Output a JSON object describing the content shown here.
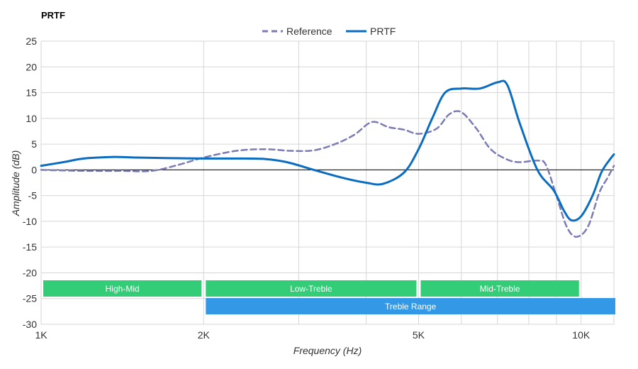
{
  "chart_data": {
    "type": "line",
    "title": "PRTF",
    "xlabel": "Frequency (Hz)",
    "ylabel": "Amplitude (dB)",
    "x_scale": "log",
    "xlim": [
      1000,
      11500
    ],
    "ylim": [
      -30,
      25
    ],
    "x_ticks": [
      {
        "value": 1000,
        "label": "1K"
      },
      {
        "value": 2000,
        "label": "2K"
      },
      {
        "value": 5000,
        "label": "5K"
      },
      {
        "value": 10000,
        "label": "10K"
      }
    ],
    "x_minor_gridlines": [
      3000,
      4000,
      6000,
      7000,
      8000,
      9000
    ],
    "y_ticks": [
      25,
      20,
      15,
      10,
      5,
      0,
      -5,
      -10,
      -15,
      -20,
      -25,
      -30
    ],
    "grid": true,
    "legend_position": "top-center",
    "series": [
      {
        "name": "Reference",
        "color": "#7b7bb5",
        "style": "dashed",
        "points": [
          [
            1000,
            0.0
          ],
          [
            1200,
            -0.2
          ],
          [
            1400,
            -0.2
          ],
          [
            1600,
            -0.2
          ],
          [
            1800,
            1.0
          ],
          [
            2000,
            2.4
          ],
          [
            2300,
            3.7
          ],
          [
            2600,
            4.0
          ],
          [
            2900,
            3.7
          ],
          [
            3200,
            3.8
          ],
          [
            3500,
            5.0
          ],
          [
            3800,
            6.8
          ],
          [
            4100,
            9.3
          ],
          [
            4400,
            8.3
          ],
          [
            4700,
            7.8
          ],
          [
            5000,
            7.0
          ],
          [
            5400,
            8.0
          ],
          [
            5700,
            10.8
          ],
          [
            6000,
            11.2
          ],
          [
            6400,
            8.0
          ],
          [
            6800,
            4.0
          ],
          [
            7300,
            2.0
          ],
          [
            7700,
            1.5
          ],
          [
            8300,
            1.8
          ],
          [
            8600,
            1.0
          ],
          [
            9000,
            -5.0
          ],
          [
            9400,
            -11.0
          ],
          [
            9800,
            -13.0
          ],
          [
            10300,
            -11.0
          ],
          [
            10800,
            -4.5
          ],
          [
            11200,
            -1.5
          ],
          [
            11500,
            0.8
          ]
        ]
      },
      {
        "name": "PRTF",
        "color": "#0a6dc0",
        "style": "solid",
        "points": [
          [
            1000,
            0.8
          ],
          [
            1100,
            1.5
          ],
          [
            1200,
            2.2
          ],
          [
            1350,
            2.5
          ],
          [
            1500,
            2.4
          ],
          [
            1700,
            2.3
          ],
          [
            2000,
            2.2
          ],
          [
            2300,
            2.2
          ],
          [
            2600,
            2.1
          ],
          [
            2850,
            1.5
          ],
          [
            3200,
            0.0
          ],
          [
            3600,
            -1.5
          ],
          [
            4000,
            -2.5
          ],
          [
            4300,
            -2.7
          ],
          [
            4700,
            -0.5
          ],
          [
            5000,
            4.0
          ],
          [
            5300,
            10.0
          ],
          [
            5600,
            15.0
          ],
          [
            6000,
            15.8
          ],
          [
            6500,
            15.8
          ],
          [
            7000,
            17.0
          ],
          [
            7300,
            16.5
          ],
          [
            7700,
            9.0
          ],
          [
            8300,
            0.0
          ],
          [
            8900,
            -4.0
          ],
          [
            9300,
            -8.0
          ],
          [
            9600,
            -9.8
          ],
          [
            10000,
            -9.0
          ],
          [
            10500,
            -5.0
          ],
          [
            10900,
            -0.5
          ],
          [
            11300,
            2.0
          ],
          [
            11500,
            3.0
          ]
        ]
      }
    ],
    "bands": [
      {
        "label": "High-Mid",
        "from": 1000,
        "to": 2000,
        "row": 0,
        "color": "#33cc77"
      },
      {
        "label": "Low-Treble",
        "from": 2000,
        "to": 5000,
        "row": 0,
        "color": "#33cc77"
      },
      {
        "label": "Mid-Treble",
        "from": 5000,
        "to": 10000,
        "row": 0,
        "color": "#33cc77"
      },
      {
        "label": "Treble Range",
        "from": 2000,
        "to": 11500,
        "row": 1,
        "color": "#3399e6"
      }
    ]
  }
}
